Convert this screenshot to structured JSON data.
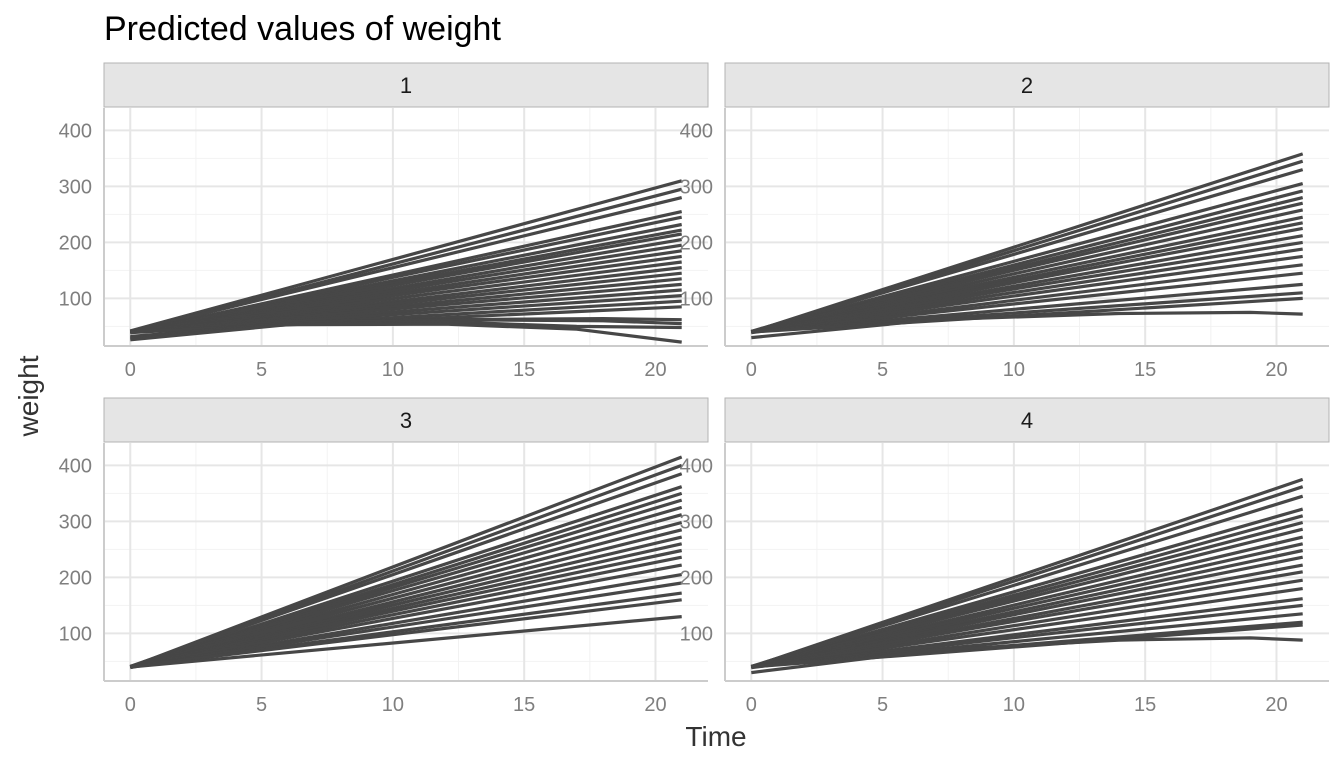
{
  "chart_data": {
    "type": "line",
    "title": "Predicted values of weight",
    "xlabel": "Time",
    "ylabel": "weight",
    "xlim": [
      -1,
      22
    ],
    "ylim": [
      15,
      440
    ],
    "x_ticks": [
      0,
      5,
      10,
      15,
      20
    ],
    "y_ticks": [
      100,
      200,
      300,
      400
    ],
    "grid": true,
    "line_color": "#474747",
    "panels": [
      {
        "label": "1",
        "series": [
          {
            "x": [
              0,
              21
            ],
            "y": [
              42,
              310
            ]
          },
          {
            "x": [
              0,
              21
            ],
            "y": [
              40,
              295
            ]
          },
          {
            "x": [
              0,
              21
            ],
            "y": [
              41,
              280
            ]
          },
          {
            "x": [
              0,
              21
            ],
            "y": [
              39,
              255
            ]
          },
          {
            "x": [
              0,
              21
            ],
            "y": [
              40,
              245
            ]
          },
          {
            "x": [
              0,
              21
            ],
            "y": [
              40,
              232
            ]
          },
          {
            "x": [
              0,
              21
            ],
            "y": [
              41,
              222
            ]
          },
          {
            "x": [
              0,
              21
            ],
            "y": [
              40,
              215
            ]
          },
          {
            "x": [
              0,
              21
            ],
            "y": [
              39,
              205
            ]
          },
          {
            "x": [
              0,
              21
            ],
            "y": [
              40,
              195
            ]
          },
          {
            "x": [
              0,
              21
            ],
            "y": [
              40,
              185
            ]
          },
          {
            "x": [
              0,
              21
            ],
            "y": [
              41,
              175
            ]
          },
          {
            "x": [
              0,
              21
            ],
            "y": [
              40,
              165
            ]
          },
          {
            "x": [
              0,
              21
            ],
            "y": [
              39,
              155
            ]
          },
          {
            "x": [
              0,
              21
            ],
            "y": [
              40,
              145
            ]
          },
          {
            "x": [
              0,
              21
            ],
            "y": [
              40,
              135
            ]
          },
          {
            "x": [
              0,
              21
            ],
            "y": [
              41,
              125
            ]
          },
          {
            "x": [
              0,
              21
            ],
            "y": [
              40,
              115
            ]
          },
          {
            "x": [
              0,
              21
            ],
            "y": [
              40,
              105
            ]
          },
          {
            "x": [
              0,
              21
            ],
            "y": [
              39,
              95
            ]
          },
          {
            "x": [
              0,
              21
            ],
            "y": [
              40,
              85
            ]
          },
          {
            "x": [
              0,
              6,
              12,
              18,
              21
            ],
            "y": [
              32,
              55,
              62,
              64,
              62
            ]
          },
          {
            "x": [
              0,
              6,
              12,
              18,
              21
            ],
            "y": [
              30,
              56,
              62,
              60,
              55
            ]
          },
          {
            "x": [
              0,
              6,
              12,
              17,
              21
            ],
            "y": [
              28,
              54,
              58,
              50,
              48
            ]
          },
          {
            "x": [
              0,
              6,
              12,
              17,
              21
            ],
            "y": [
              26,
              53,
              54,
              45,
              22
            ]
          }
        ]
      },
      {
        "label": "2",
        "series": [
          {
            "x": [
              0,
              21
            ],
            "y": [
              40,
              358
            ]
          },
          {
            "x": [
              0,
              21
            ],
            "y": [
              40,
              345
            ]
          },
          {
            "x": [
              0,
              21
            ],
            "y": [
              41,
              330
            ]
          },
          {
            "x": [
              0,
              21
            ],
            "y": [
              40,
              305
            ]
          },
          {
            "x": [
              0,
              21
            ],
            "y": [
              39,
              292
            ]
          },
          {
            "x": [
              0,
              21
            ],
            "y": [
              40,
              280
            ]
          },
          {
            "x": [
              0,
              21
            ],
            "y": [
              41,
              270
            ]
          },
          {
            "x": [
              0,
              21
            ],
            "y": [
              40,
              258
            ]
          },
          {
            "x": [
              0,
              21
            ],
            "y": [
              40,
              245
            ]
          },
          {
            "x": [
              0,
              21
            ],
            "y": [
              39,
              235
            ]
          },
          {
            "x": [
              0,
              21
            ],
            "y": [
              40,
              225
            ]
          },
          {
            "x": [
              0,
              21
            ],
            "y": [
              40,
              212
            ]
          },
          {
            "x": [
              0,
              21
            ],
            "y": [
              41,
              200
            ]
          },
          {
            "x": [
              0,
              21
            ],
            "y": [
              40,
              188
            ]
          },
          {
            "x": [
              0,
              21
            ],
            "y": [
              40,
              175
            ]
          },
          {
            "x": [
              0,
              21
            ],
            "y": [
              39,
              160
            ]
          },
          {
            "x": [
              0,
              21
            ],
            "y": [
              40,
              145
            ]
          },
          {
            "x": [
              0,
              21
            ],
            "y": [
              40,
              125
            ]
          },
          {
            "x": [
              0,
              21
            ],
            "y": [
              41,
              110
            ]
          },
          {
            "x": [
              0,
              21
            ],
            "y": [
              40,
              100
            ]
          },
          {
            "x": [
              0,
              7,
              14,
              19,
              21
            ],
            "y": [
              30,
              62,
              73,
              75,
              72
            ]
          }
        ]
      },
      {
        "label": "3",
        "series": [
          {
            "x": [
              0,
              21
            ],
            "y": [
              40,
              415
            ]
          },
          {
            "x": [
              0,
              21
            ],
            "y": [
              40,
              400
            ]
          },
          {
            "x": [
              0,
              21
            ],
            "y": [
              41,
              385
            ]
          },
          {
            "x": [
              0,
              21
            ],
            "y": [
              40,
              362
            ]
          },
          {
            "x": [
              0,
              21
            ],
            "y": [
              39,
              350
            ]
          },
          {
            "x": [
              0,
              21
            ],
            "y": [
              40,
              338
            ]
          },
          {
            "x": [
              0,
              21
            ],
            "y": [
              41,
              325
            ]
          },
          {
            "x": [
              0,
              21
            ],
            "y": [
              40,
              312
            ]
          },
          {
            "x": [
              0,
              21
            ],
            "y": [
              40,
              298
            ]
          },
          {
            "x": [
              0,
              21
            ],
            "y": [
              39,
              285
            ]
          },
          {
            "x": [
              0,
              21
            ],
            "y": [
              40,
              272
            ]
          },
          {
            "x": [
              0,
              21
            ],
            "y": [
              40,
              260
            ]
          },
          {
            "x": [
              0,
              21
            ],
            "y": [
              41,
              248
            ]
          },
          {
            "x": [
              0,
              21
            ],
            "y": [
              40,
              236
            ]
          },
          {
            "x": [
              0,
              21
            ],
            "y": [
              40,
              222
            ]
          },
          {
            "x": [
              0,
              21
            ],
            "y": [
              39,
              205
            ]
          },
          {
            "x": [
              0,
              21
            ],
            "y": [
              40,
              190
            ]
          },
          {
            "x": [
              0,
              21
            ],
            "y": [
              40,
              172
            ]
          },
          {
            "x": [
              0,
              21
            ],
            "y": [
              41,
              160
            ]
          },
          {
            "x": [
              0,
              21
            ],
            "y": [
              40,
              130
            ]
          }
        ]
      },
      {
        "label": "4",
        "series": [
          {
            "x": [
              0,
              21
            ],
            "y": [
              40,
              375
            ]
          },
          {
            "x": [
              0,
              21
            ],
            "y": [
              40,
              362
            ]
          },
          {
            "x": [
              0,
              21
            ],
            "y": [
              41,
              345
            ]
          },
          {
            "x": [
              0,
              21
            ],
            "y": [
              40,
              322
            ]
          },
          {
            "x": [
              0,
              21
            ],
            "y": [
              39,
              310
            ]
          },
          {
            "x": [
              0,
              21
            ],
            "y": [
              40,
              298
            ]
          },
          {
            "x": [
              0,
              21
            ],
            "y": [
              41,
              286
            ]
          },
          {
            "x": [
              0,
              21
            ],
            "y": [
              40,
              272
            ]
          },
          {
            "x": [
              0,
              21
            ],
            "y": [
              40,
              260
            ]
          },
          {
            "x": [
              0,
              21
            ],
            "y": [
              39,
              248
            ]
          },
          {
            "x": [
              0,
              21
            ],
            "y": [
              40,
              236
            ]
          },
          {
            "x": [
              0,
              21
            ],
            "y": [
              40,
              222
            ]
          },
          {
            "x": [
              0,
              21
            ],
            "y": [
              41,
              210
            ]
          },
          {
            "x": [
              0,
              21
            ],
            "y": [
              40,
              195
            ]
          },
          {
            "x": [
              0,
              21
            ],
            "y": [
              40,
              180
            ]
          },
          {
            "x": [
              0,
              21
            ],
            "y": [
              39,
              162
            ]
          },
          {
            "x": [
              0,
              21
            ],
            "y": [
              40,
              150
            ]
          },
          {
            "x": [
              0,
              21
            ],
            "y": [
              40,
              135
            ]
          },
          {
            "x": [
              0,
              21
            ],
            "y": [
              41,
              120
            ]
          },
          {
            "x": [
              0,
              21
            ],
            "y": [
              40,
              115
            ]
          },
          {
            "x": [
              0,
              7,
              14,
              19,
              21
            ],
            "y": [
              30,
              70,
              88,
              92,
              88
            ]
          }
        ]
      }
    ]
  }
}
